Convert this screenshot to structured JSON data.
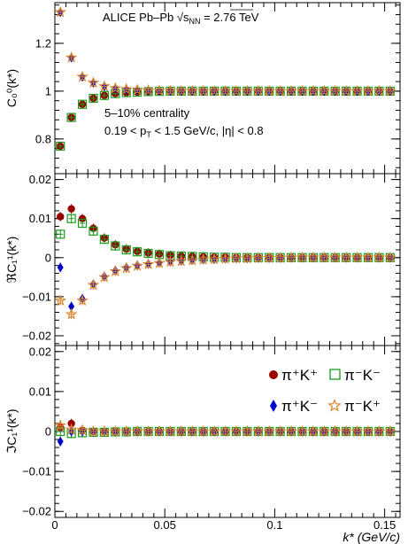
{
  "chart_data": {
    "type": "scatter",
    "header": {
      "line1": "ALICE Pb–Pb √s",
      "sub": "NN",
      "line1_tail": " = 2.76 TeV"
    },
    "annotation": {
      "centrality": "5–10% centrality",
      "cuts": "0.19 < p",
      "cuts_sub": "T",
      "cuts_tail": " < 1.5 GeV/c, |η| < 0.8"
    },
    "xlabel": "k* (GeV/c)",
    "xlim": [
      0,
      0.157
    ],
    "xticks": [
      0,
      0.05,
      0.1,
      0.15
    ],
    "xtick_labels": [
      "0",
      "0.05",
      "0.1",
      "0.15"
    ],
    "legend": {
      "placement": "top-right of bottom panel",
      "entries": [
        "π⁺K⁺",
        "π⁻K⁻",
        "π⁺K⁻",
        "π⁻K⁺"
      ]
    },
    "panels": [
      {
        "id": "c00",
        "ylabel": "C₀⁰(k*)",
        "ylim": [
          0.655,
          1.37
        ],
        "yticks": [
          0.8,
          1.0,
          1.2
        ],
        "ytick_labels": [
          "0.8",
          "1",
          "1.2"
        ],
        "series": [
          {
            "name": "π⁺K⁺",
            "color": "#990000",
            "marker": "circle",
            "x": [
              0.0025,
              0.0075,
              0.0125,
              0.0175,
              0.0225,
              0.0275,
              0.0325,
              0.0375,
              0.0425,
              0.0475,
              0.0525,
              0.0575,
              0.0625,
              0.0675,
              0.0725,
              0.0775,
              0.0825,
              0.0875,
              0.0925,
              0.0975,
              0.1025,
              0.1075,
              0.1125,
              0.1175,
              0.1225,
              0.1275,
              0.1325,
              0.1375,
              0.1425,
              0.1475,
              0.1525
            ],
            "y": [
              0.77,
              0.89,
              0.945,
              0.97,
              0.982,
              0.99,
              0.994,
              0.996,
              0.998,
              0.999,
              1.0,
              1.0,
              1.0,
              1.0,
              1.0,
              1.0,
              1.0,
              1.0,
              1.0,
              1.0,
              1.0,
              1.0,
              1.0,
              1.0,
              1.0,
              1.0,
              1.0,
              1.0,
              1.0,
              1.0,
              1.0
            ]
          },
          {
            "name": "π⁻K⁻",
            "color": "#1a9a1a",
            "marker": "open-square",
            "x": [
              0.0025,
              0.0075,
              0.0125,
              0.0175,
              0.0225,
              0.0275,
              0.0325,
              0.0375,
              0.0425,
              0.0475,
              0.0525,
              0.0575,
              0.0625,
              0.0675,
              0.0725,
              0.0775,
              0.0825,
              0.0875,
              0.0925,
              0.0975,
              0.1025,
              0.1075,
              0.1125,
              0.1175,
              0.1225,
              0.1275,
              0.1325,
              0.1375,
              0.1425,
              0.1475,
              0.1525
            ],
            "y": [
              0.77,
              0.89,
              0.945,
              0.97,
              0.982,
              0.99,
              0.994,
              0.996,
              0.998,
              0.999,
              1.0,
              1.0,
              1.0,
              1.0,
              1.0,
              1.0,
              1.0,
              1.0,
              1.0,
              1.0,
              1.0,
              1.0,
              1.0,
              1.0,
              1.0,
              1.0,
              1.0,
              1.0,
              1.0,
              1.0,
              1.0
            ]
          },
          {
            "name": "π⁺K⁻",
            "color": "#0000cc",
            "marker": "diamond",
            "x": [
              0.0025,
              0.0075,
              0.0125,
              0.0175,
              0.0225,
              0.0275,
              0.0325,
              0.0375,
              0.0425,
              0.0475,
              0.0525,
              0.0575,
              0.0625,
              0.0675,
              0.0725,
              0.0775,
              0.0825,
              0.0875,
              0.0925,
              0.0975,
              0.1025,
              0.1075,
              0.1125,
              0.1175,
              0.1225,
              0.1275,
              0.1325,
              0.1375,
              0.1425,
              0.1475,
              0.1525
            ],
            "y": [
              1.33,
              1.14,
              1.06,
              1.035,
              1.02,
              1.012,
              1.008,
              1.005,
              1.003,
              1.002,
              1.001,
              1.0,
              1.0,
              1.0,
              1.0,
              1.0,
              1.0,
              1.0,
              1.0,
              1.0,
              1.0,
              1.0,
              1.0,
              1.0,
              1.0,
              1.0,
              1.0,
              1.0,
              1.0,
              1.0,
              1.0
            ]
          },
          {
            "name": "π⁻K⁺",
            "color": "#d9822b",
            "marker": "open-star",
            "x": [
              0.0025,
              0.0075,
              0.0125,
              0.0175,
              0.0225,
              0.0275,
              0.0325,
              0.0375,
              0.0425,
              0.0475,
              0.0525,
              0.0575,
              0.0625,
              0.0675,
              0.0725,
              0.0775,
              0.0825,
              0.0875,
              0.0925,
              0.0975,
              0.1025,
              0.1075,
              0.1125,
              0.1175,
              0.1225,
              0.1275,
              0.1325,
              0.1375,
              0.1425,
              0.1475,
              0.1525
            ],
            "y": [
              1.33,
              1.14,
              1.06,
              1.035,
              1.02,
              1.012,
              1.008,
              1.005,
              1.003,
              1.002,
              1.001,
              1.0,
              1.0,
              1.0,
              1.0,
              1.0,
              1.0,
              1.0,
              1.0,
              1.0,
              1.0,
              1.0,
              1.0,
              1.0,
              1.0,
              1.0,
              1.0,
              1.0,
              1.0,
              1.0,
              1.0
            ]
          }
        ]
      },
      {
        "id": "rec11",
        "ylabel": "ℜC₁¹(k*)",
        "ylim": [
          -0.0225,
          0.0215
        ],
        "yticks": [
          -0.02,
          -0.01,
          0,
          0.01,
          0.02
        ],
        "ytick_labels": [
          "−0.02",
          "−0.01",
          "0",
          "0.01",
          "0.02"
        ],
        "series": [
          {
            "name": "π⁺K⁺",
            "color": "#990000",
            "marker": "circle",
            "x": [
              0.0025,
              0.0075,
              0.0125,
              0.0175,
              0.0225,
              0.0275,
              0.0325,
              0.0375,
              0.0425,
              0.0475,
              0.0525,
              0.0575,
              0.0625,
              0.0675,
              0.0725,
              0.0775,
              0.0825,
              0.0875,
              0.0925,
              0.0975,
              0.1025,
              0.1075,
              0.1125,
              0.1175,
              0.1225,
              0.1275,
              0.1325,
              0.1375,
              0.1425,
              0.1475,
              0.1525
            ],
            "y": [
              0.0105,
              0.0125,
              0.01,
              0.0075,
              0.005,
              0.0033,
              0.0022,
              0.0016,
              0.0012,
              0.0009,
              0.0006,
              0.0004,
              0.0003,
              0.0002,
              0.0001,
              0.0001,
              0.0,
              0.0,
              0.0,
              0.0,
              0.0,
              0.0,
              0.0,
              0.0,
              0.0,
              0.0,
              0.0,
              0.0,
              0.0,
              0.0,
              0.0
            ]
          },
          {
            "name": "π⁻K⁻",
            "color": "#1a9a1a",
            "marker": "open-square",
            "x": [
              0.0025,
              0.0075,
              0.0125,
              0.0175,
              0.0225,
              0.0275,
              0.0325,
              0.0375,
              0.0425,
              0.0475,
              0.0525,
              0.0575,
              0.0625,
              0.0675,
              0.0725,
              0.0775,
              0.0825,
              0.0875,
              0.0925,
              0.0975,
              0.1025,
              0.1075,
              0.1125,
              0.1175,
              0.1225,
              0.1275,
              0.1325,
              0.1375,
              0.1425,
              0.1475,
              0.1525
            ],
            "y": [
              0.006,
              0.01,
              0.0088,
              0.0068,
              0.0047,
              0.003,
              0.002,
              0.0015,
              0.0011,
              0.0008,
              0.0005,
              0.0004,
              0.0003,
              0.0002,
              0.0001,
              0.0001,
              0.0,
              0.0,
              0.0,
              0.0,
              0.0,
              0.0,
              0.0,
              0.0,
              0.0,
              0.0,
              0.0,
              0.0,
              0.0,
              0.0,
              0.0
            ]
          },
          {
            "name": "π⁺K⁻",
            "color": "#0000cc",
            "marker": "diamond",
            "x": [
              0.0025,
              0.0075,
              0.0125,
              0.0175,
              0.0225,
              0.0275,
              0.0325,
              0.0375,
              0.0425,
              0.0475,
              0.0525,
              0.0575,
              0.0625,
              0.0675,
              0.0725,
              0.0775,
              0.0825,
              0.0875,
              0.0925,
              0.0975,
              0.1025,
              0.1075,
              0.1125,
              0.1175,
              0.1225,
              0.1275,
              0.1325,
              0.1375,
              0.1425,
              0.1475,
              0.1525
            ],
            "y": [
              -0.0025,
              -0.0125,
              -0.0105,
              -0.0068,
              -0.0048,
              -0.0033,
              -0.0025,
              -0.002,
              -0.0016,
              -0.0013,
              -0.001,
              -0.0008,
              -0.0006,
              -0.0005,
              -0.0004,
              -0.0003,
              -0.0002,
              -0.0002,
              -0.0001,
              -0.0001,
              -0.0001,
              0.0,
              0.0,
              0.0,
              0.0,
              0.0,
              0.0,
              0.0,
              0.0,
              0.0,
              0.0
            ]
          },
          {
            "name": "π⁻K⁺",
            "color": "#d9822b",
            "marker": "open-star",
            "x": [
              0.0025,
              0.0075,
              0.0125,
              0.0175,
              0.0225,
              0.0275,
              0.0325,
              0.0375,
              0.0425,
              0.0475,
              0.0525,
              0.0575,
              0.0625,
              0.0675,
              0.0725,
              0.0775,
              0.0825,
              0.0875,
              0.0925,
              0.0975,
              0.1025,
              0.1075,
              0.1125,
              0.1175,
              0.1225,
              0.1275,
              0.1325,
              0.1375,
              0.1425,
              0.1475,
              0.1525
            ],
            "y": [
              -0.011,
              -0.0145,
              -0.011,
              -0.007,
              -0.005,
              -0.0035,
              -0.0027,
              -0.0021,
              -0.0017,
              -0.0014,
              -0.0011,
              -0.0009,
              -0.0007,
              -0.0005,
              -0.0004,
              -0.0003,
              -0.0002,
              -0.0002,
              -0.0001,
              -0.0001,
              -0.0001,
              0.0,
              0.0,
              0.0,
              0.0,
              0.0,
              0.0,
              0.0,
              0.0,
              0.0,
              0.0
            ]
          }
        ]
      },
      {
        "id": "imc11",
        "ylabel": "ℑC₁¹(k*)",
        "ylim": [
          -0.0215,
          0.0215
        ],
        "yticks": [
          -0.02,
          -0.01,
          0,
          0.01,
          0.02
        ],
        "ytick_labels": [
          "−0.02",
          "−0.01",
          "0",
          "0.01",
          "0.02"
        ],
        "series": [
          {
            "name": "π⁺K⁺",
            "color": "#990000",
            "marker": "circle",
            "x": [
              0.0025,
              0.0075,
              0.0125,
              0.0175,
              0.0225,
              0.0275,
              0.0325,
              0.0375,
              0.0425,
              0.0475,
              0.0525,
              0.0575,
              0.0625,
              0.0675,
              0.0725,
              0.0775,
              0.0825,
              0.0875,
              0.0925,
              0.0975,
              0.1025,
              0.1075,
              0.1125,
              0.1175,
              0.1225,
              0.1275,
              0.1325,
              0.1375,
              0.1425,
              0.1475,
              0.1525
            ],
            "y": [
              0.001,
              0.002,
              0.0003,
              0.0,
              0.0,
              0.0,
              0.0,
              0.0,
              0.0,
              0.0,
              0.0,
              0.0,
              0.0,
              0.0,
              0.0,
              0.0,
              0.0,
              0.0,
              0.0,
              0.0,
              0.0,
              0.0,
              0.0,
              0.0,
              0.0,
              0.0,
              0.0,
              0.0,
              0.0,
              0.0,
              0.0
            ]
          },
          {
            "name": "π⁻K⁻",
            "color": "#1a9a1a",
            "marker": "open-square",
            "x": [
              0.0025,
              0.0075,
              0.0125,
              0.0175,
              0.0225,
              0.0275,
              0.0325,
              0.0375,
              0.0425,
              0.0475,
              0.0525,
              0.0575,
              0.0625,
              0.0675,
              0.0725,
              0.0775,
              0.0825,
              0.0875,
              0.0925,
              0.0975,
              0.1025,
              0.1075,
              0.1125,
              0.1175,
              0.1225,
              0.1275,
              0.1325,
              0.1375,
              0.1425,
              0.1475,
              0.1525
            ],
            "y": [
              0.0,
              -0.0005,
              -0.0003,
              -0.0002,
              -0.0002,
              -0.0001,
              -0.0001,
              0.0,
              0.0,
              0.0,
              0.0,
              0.0,
              0.0,
              0.0,
              0.0,
              0.0,
              0.0,
              0.0,
              0.0,
              0.0,
              0.0,
              0.0,
              0.0,
              0.0,
              0.0,
              0.0,
              0.0,
              0.0,
              0.0,
              0.0,
              0.0
            ]
          },
          {
            "name": "π⁺K⁻",
            "color": "#0000cc",
            "marker": "diamond",
            "x": [
              0.0025,
              0.0075,
              0.0125,
              0.0175,
              0.0225,
              0.0275,
              0.0325,
              0.0375,
              0.0425,
              0.0475,
              0.0525,
              0.0575,
              0.0625,
              0.0675,
              0.0725,
              0.0775,
              0.0825,
              0.0875,
              0.0925,
              0.0975,
              0.1025,
              0.1075,
              0.1125,
              0.1175,
              0.1225,
              0.1275,
              0.1325,
              0.1375,
              0.1425,
              0.1475,
              0.1525
            ],
            "y": [
              -0.0025,
              0.0,
              0.0,
              0.0,
              0.0,
              0.0,
              0.0,
              0.0,
              0.0,
              0.0,
              0.0,
              0.0,
              0.0,
              0.0,
              0.0,
              0.0,
              0.0,
              0.0,
              0.0,
              0.0,
              0.0,
              0.0,
              0.0,
              0.0,
              0.0,
              0.0,
              0.0,
              0.0,
              0.0,
              0.0,
              0.0
            ]
          },
          {
            "name": "π⁻K⁺",
            "color": "#d9822b",
            "marker": "open-star",
            "x": [
              0.0025,
              0.0075,
              0.0125,
              0.0175,
              0.0225,
              0.0275,
              0.0325,
              0.0375,
              0.0425,
              0.0475,
              0.0525,
              0.0575,
              0.0625,
              0.0675,
              0.0725,
              0.0775,
              0.0825,
              0.0875,
              0.0925,
              0.0975,
              0.1025,
              0.1075,
              0.1125,
              0.1175,
              0.1225,
              0.1275,
              0.1325,
              0.1375,
              0.1425,
              0.1475,
              0.1525
            ],
            "y": [
              0.0015,
              0.0005,
              0.0003,
              0.0,
              0.0,
              0.0,
              0.0,
              0.0,
              0.0,
              0.0,
              0.0,
              0.0,
              0.0,
              0.0,
              0.0,
              0.0,
              0.0,
              0.0,
              0.0,
              0.0,
              0.0,
              0.0,
              0.0,
              0.0,
              0.0,
              0.0,
              0.0,
              0.0,
              0.0,
              0.0,
              0.0
            ]
          }
        ]
      }
    ]
  }
}
